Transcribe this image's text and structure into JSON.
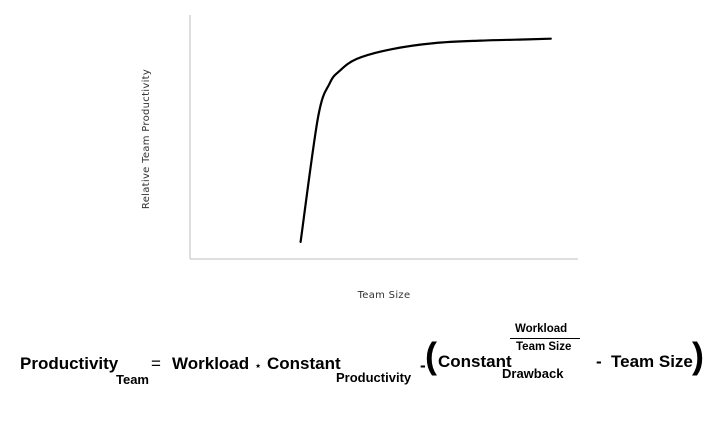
{
  "chart_data": {
    "type": "line",
    "xlabel": "Team Size",
    "ylabel": "Relative Team Productivity",
    "x_ticks_shown": false,
    "y_ticks_shown": false,
    "grid": false,
    "legend": "none",
    "xlim": [
      0,
      10
    ],
    "ylim": [
      0,
      100
    ],
    "series": [
      {
        "color": "#000000",
        "x": [
          2.85,
          3.3,
          3.6,
          3.85,
          4.3,
          5.2,
          6.3,
          7.5,
          8.7,
          9.3
        ],
        "y": [
          7,
          58,
          72,
          77,
          82,
          86,
          88.5,
          89.5,
          90,
          90.3
        ]
      }
    ]
  },
  "formula": {
    "productivity": "Productivity",
    "team_sub": "Team",
    "equals": "=",
    "workload": "Workload",
    "times": "⋆",
    "constant": "Constant",
    "productivity_sub": "Productivity",
    "minus_1": "-",
    "open_paren": "(",
    "constant2": "Constant",
    "drawback_sub": "Drawback",
    "exp_numerator": "Workload",
    "exp_denominator": "Team Size",
    "minus_2": "-",
    "team_size": "Team Size",
    "close_paren": ")"
  }
}
